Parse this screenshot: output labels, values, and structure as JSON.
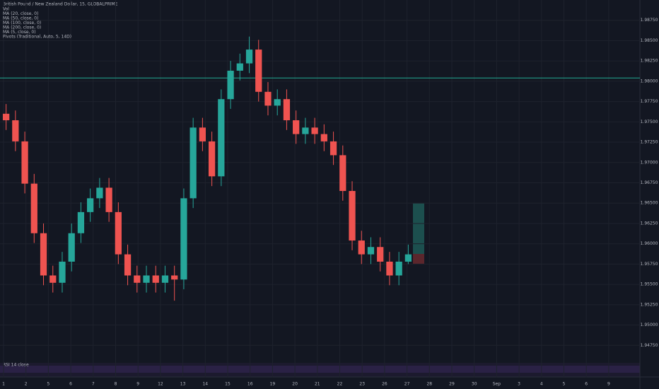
{
  "chart_data": {
    "type": "candlestick",
    "title": "British Pound / New Zealand Dollar, 15, GLOBALPRIME",
    "legend": [
      "Vol",
      "MA (20, close, 0)",
      "MA (50, close, 0)",
      "MA (100, close, 0)",
      "MA (200, close, 0)",
      "MA (5, close, 0)",
      "Pivots (Traditional, Auto, 5, 14D)"
    ],
    "rsi_label": "RSI 14 close",
    "up_color": "#26a69a",
    "down_color": "#ef5350",
    "open": [
      1.976,
      1.9752,
      1.9726,
      1.9674,
      1.9613,
      1.9561,
      1.9552,
      1.9578,
      1.9613,
      1.9639,
      1.9656,
      1.9669,
      1.9639,
      1.9587,
      1.9561,
      1.9552,
      1.9561,
      1.9552,
      1.9561,
      1.9556,
      1.9656,
      1.9743,
      1.9726,
      1.9683,
      1.9778,
      1.9813,
      1.9822,
      1.9839,
      1.9787,
      1.977,
      1.9778,
      1.9752,
      1.9735,
      1.9743,
      1.9735,
      1.9726,
      1.9709,
      1.9665,
      1.9604,
      1.9587,
      1.9596,
      1.9578,
      1.9561,
      1.9578
    ],
    "high": [
      1.9772,
      1.9764,
      1.9738,
      1.9686,
      1.9625,
      1.9573,
      1.959,
      1.9625,
      1.9651,
      1.9668,
      1.9681,
      1.9681,
      1.9651,
      1.9599,
      1.9573,
      1.9573,
      1.9573,
      1.9573,
      1.9573,
      1.9668,
      1.9755,
      1.9755,
      1.9738,
      1.979,
      1.9825,
      1.9834,
      1.9855,
      1.9851,
      1.9799,
      1.979,
      1.979,
      1.9764,
      1.9755,
      1.9755,
      1.9747,
      1.9738,
      1.9721,
      1.9677,
      1.9616,
      1.9608,
      1.9608,
      1.959,
      1.959,
      1.9599
    ],
    "low": [
      1.974,
      1.9714,
      1.9662,
      1.9601,
      1.9549,
      1.954,
      1.954,
      1.9566,
      1.9601,
      1.9627,
      1.9644,
      1.9627,
      1.9575,
      1.9549,
      1.954,
      1.954,
      1.954,
      1.954,
      1.953,
      1.9544,
      1.9644,
      1.9714,
      1.9671,
      1.9671,
      1.9766,
      1.9801,
      1.981,
      1.9775,
      1.9758,
      1.9758,
      1.974,
      1.9723,
      1.9723,
      1.9723,
      1.9714,
      1.9697,
      1.9653,
      1.9592,
      1.9575,
      1.9575,
      1.9566,
      1.9549,
      1.9549,
      1.9575
    ],
    "close": [
      1.9752,
      1.9726,
      1.9674,
      1.9613,
      1.9561,
      1.9552,
      1.9578,
      1.9613,
      1.9639,
      1.9656,
      1.9669,
      1.9639,
      1.9587,
      1.9561,
      1.9552,
      1.9561,
      1.9552,
      1.9561,
      1.9556,
      1.9656,
      1.9743,
      1.9726,
      1.9683,
      1.9778,
      1.9813,
      1.9822,
      1.9839,
      1.9787,
      1.977,
      1.9778,
      1.9752,
      1.9735,
      1.9743,
      1.9735,
      1.9726,
      1.9709,
      1.9665,
      1.9604,
      1.9587,
      1.9596,
      1.9578,
      1.9561,
      1.9578,
      1.9587
    ],
    "hline": 1.9804,
    "ylim": [
      1.945,
      1.99
    ],
    "yticks": [
      {
        "value": 1.9475,
        "label": "1.94750"
      },
      {
        "value": 1.95,
        "label": "1.95000"
      },
      {
        "value": 1.9525,
        "label": "1.95250"
      },
      {
        "value": 1.955,
        "label": "1.95500"
      },
      {
        "value": 1.9575,
        "label": "1.95750"
      },
      {
        "value": 1.96,
        "label": "1.96000"
      },
      {
        "value": 1.9625,
        "label": "1.96250"
      },
      {
        "value": 1.965,
        "label": "1.96500"
      },
      {
        "value": 1.9675,
        "label": "1.96750"
      },
      {
        "value": 1.97,
        "label": "1.97000"
      },
      {
        "value": 1.9725,
        "label": "1.97250"
      },
      {
        "value": 1.975,
        "label": "1.97500"
      },
      {
        "value": 1.9775,
        "label": "1.97750"
      },
      {
        "value": 1.98,
        "label": "1.98000"
      },
      {
        "value": 1.9825,
        "label": "1.98250"
      },
      {
        "value": 1.985,
        "label": "1.98500"
      },
      {
        "value": 1.9875,
        "label": "1.98750"
      }
    ],
    "xlabels": [
      "1",
      "2",
      "5",
      "6",
      "7",
      "8",
      "9",
      "12",
      "13",
      "14",
      "15",
      "16",
      "19",
      "20",
      "21",
      "22",
      "23",
      "26",
      "27",
      "28",
      "29",
      "30",
      "Sep",
      "3",
      "4",
      "5",
      "6",
      "9"
    ]
  }
}
